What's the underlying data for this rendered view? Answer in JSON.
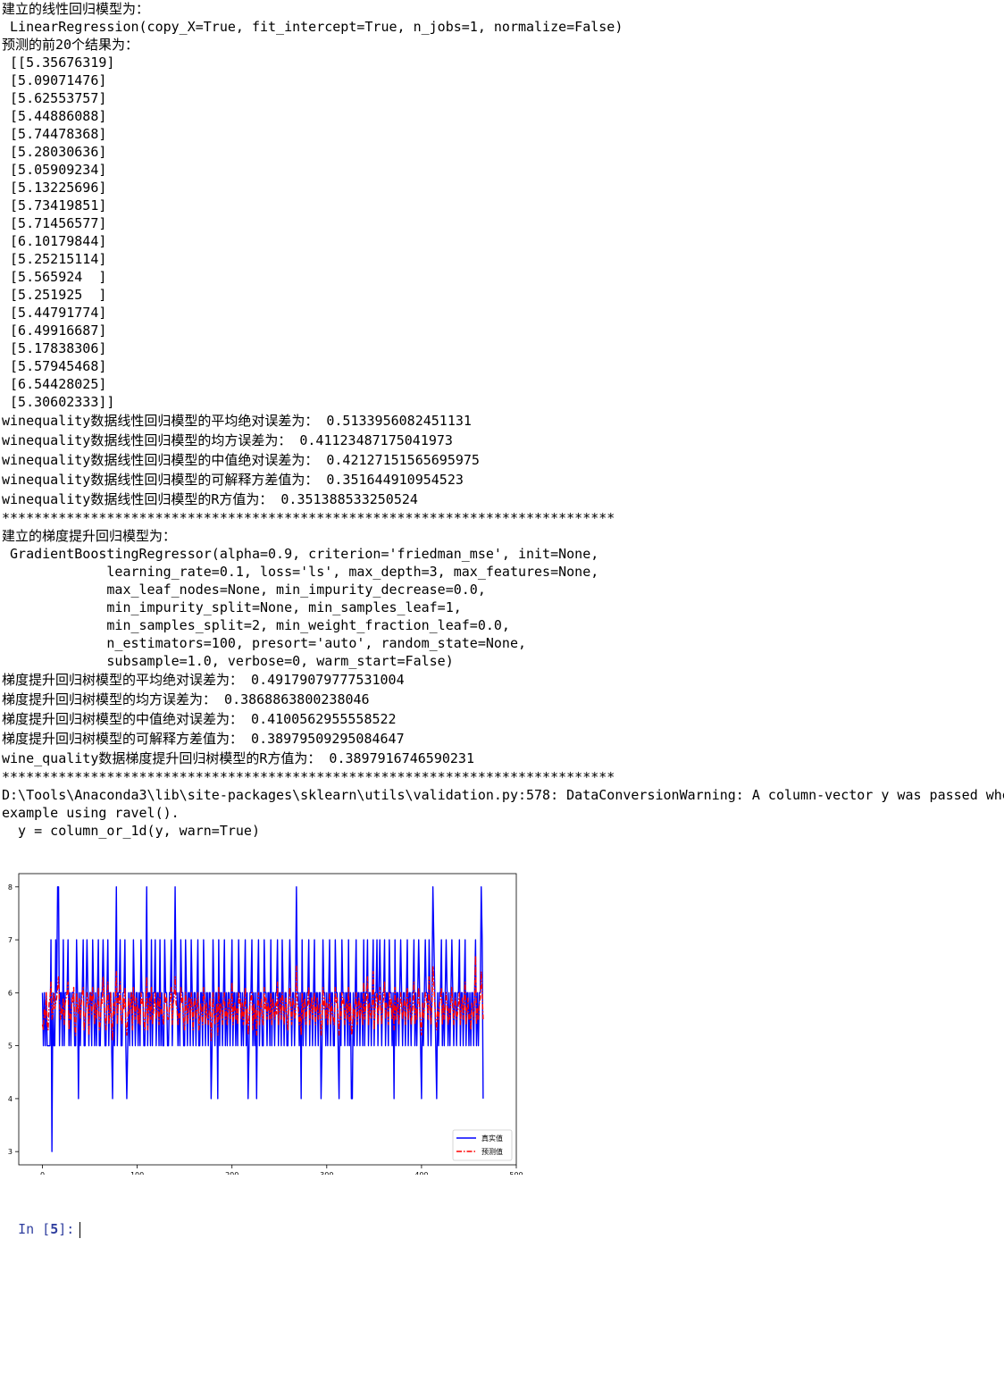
{
  "output": {
    "lines": [
      "建立的线性回归模型为：",
      " LinearRegression(copy_X=True, fit_intercept=True, n_jobs=1, normalize=False)",
      "预测的前20个结果为：",
      " [[5.35676319]",
      " [5.09071476]",
      " [5.62553757]",
      " [5.44886088]",
      " [5.74478368]",
      " [5.28030636]",
      " [5.05909234]",
      " [5.13225696]",
      " [5.73419851]",
      " [5.71456577]",
      " [6.10179844]",
      " [5.25215114]",
      " [5.565924  ]",
      " [5.251925  ]",
      " [5.44791774]",
      " [6.49916687]",
      " [5.17838306]",
      " [5.57945468]",
      " [6.54428025]",
      " [5.30602333]]"
    ],
    "lr_metrics": [
      "winequality数据线性回归模型的平均绝对误差为： 0.5133956082451131",
      "winequality数据线性回归模型的均方误差为： 0.41123487175041973",
      "winequality数据线性回归模型的中值绝对误差为： 0.42127151565695975",
      "winequality数据线性回归模型的可解释方差值为： 0.351644910954523",
      "winequality数据线性回归模型的R方值为： 0.351388533250524"
    ],
    "separator": "****************************************************************************",
    "gbr_lines": [
      "建立的梯度提升回归模型为：",
      " GradientBoostingRegressor(alpha=0.9, criterion='friedman_mse', init=None,",
      "             learning_rate=0.1, loss='ls', max_depth=3, max_features=None,",
      "             max_leaf_nodes=None, min_impurity_decrease=0.0,",
      "             min_impurity_split=None, min_samples_leaf=1,",
      "             min_samples_split=2, min_weight_fraction_leaf=0.0,",
      "             n_estimators=100, presort='auto', random_state=None,",
      "             subsample=1.0, verbose=0, warm_start=False)"
    ],
    "gbr_metrics": [
      "梯度提升回归树模型的平均绝对误差为： 0.49179079777531004",
      "梯度提升回归树模型的均方误差为： 0.3868863800238046",
      "梯度提升回归树模型的中值绝对误差为： 0.4100562955558522",
      "梯度提升回归树模型的可解释方差值为： 0.38979509295084647",
      "wine_quality数据梯度提升回归树模型的R方值为： 0.3897916746590231"
    ],
    "warning": [
      "D:\\Tools\\Anaconda3\\lib\\site-packages\\sklearn\\utils\\validation.py:578: DataConversionWarning: A column-vector y was passed whe",
      "example using ravel().",
      "  y = column_or_1d(y, warn=True)"
    ]
  },
  "prompt": {
    "label": "In ",
    "open": "[",
    "number": "5",
    "close": "]:"
  },
  "chart_data": {
    "type": "line",
    "title": "",
    "xlabel": "",
    "ylabel": "",
    "xlim": [
      -25,
      500
    ],
    "ylim": [
      2.75,
      8.25
    ],
    "xticks": [
      "0",
      "100",
      "200",
      "300",
      "400",
      "500"
    ],
    "yticks": [
      "3",
      "4",
      "5",
      "6",
      "7",
      "8"
    ],
    "grid": false,
    "legend_position": "lower-right",
    "colors": {
      "true": "#0000ff",
      "pred": "#ff0000"
    },
    "series": [
      {
        "name": "真实值",
        "style": "solid",
        "color": "#0000ff",
        "x_start": 0,
        "x_step": 1,
        "values": [
          6,
          5,
          6,
          5,
          6,
          5,
          5,
          5,
          5,
          7,
          3,
          6,
          5,
          5,
          7,
          6,
          8,
          8,
          5,
          6,
          6,
          5,
          7,
          5,
          6,
          6,
          6,
          7,
          5,
          6,
          5,
          6,
          6,
          6,
          5,
          5,
          7,
          6,
          4,
          6,
          5,
          6,
          6,
          7,
          5,
          5,
          6,
          7,
          6,
          5,
          6,
          6,
          5,
          7,
          6,
          5,
          6,
          5,
          6,
          7,
          5,
          5,
          6,
          6,
          7,
          6,
          5,
          5,
          6,
          7,
          5,
          6,
          6,
          5,
          4,
          6,
          5,
          6,
          8,
          5,
          6,
          6,
          7,
          5,
          5,
          6,
          6,
          7,
          5,
          4,
          5,
          6,
          5,
          6,
          6,
          5,
          7,
          6,
          5,
          6,
          6,
          5,
          6,
          5,
          7,
          6,
          6,
          5,
          5,
          6,
          8,
          5,
          6,
          6,
          5,
          7,
          5,
          6,
          6,
          7,
          5,
          6,
          6,
          5,
          7,
          5,
          6,
          5,
          5,
          7,
          6,
          6,
          5,
          5,
          6,
          6,
          7,
          5,
          6,
          6,
          8,
          6,
          6,
          5,
          6,
          5,
          7,
          6,
          6,
          5,
          5,
          7,
          6,
          5,
          6,
          6,
          5,
          7,
          6,
          5,
          6,
          6,
          5,
          6,
          7,
          5,
          5,
          6,
          6,
          5,
          7,
          6,
          5,
          6,
          6,
          5,
          6,
          6,
          4,
          5,
          7,
          6,
          5,
          6,
          6,
          4,
          7,
          5,
          6,
          6,
          5,
          6,
          7,
          5,
          6,
          5,
          6,
          6,
          5,
          6,
          7,
          5,
          6,
          6,
          5,
          6,
          5,
          7,
          6,
          6,
          5,
          6,
          5,
          6,
          7,
          5,
          6,
          4,
          5,
          6,
          6,
          7,
          5,
          6,
          5,
          6,
          4,
          6,
          7,
          5,
          6,
          6,
          5,
          5,
          7,
          6,
          6,
          5,
          6,
          6,
          5,
          7,
          5,
          6,
          6,
          5,
          6,
          6,
          7,
          5,
          6,
          6,
          5,
          7,
          6,
          5,
          6,
          6,
          5,
          5,
          6,
          7,
          6,
          5,
          6,
          6,
          5,
          6,
          8,
          6,
          6,
          5,
          6,
          4,
          7,
          5,
          6,
          6,
          5,
          6,
          6,
          7,
          5,
          6,
          6,
          5,
          6,
          7,
          5,
          6,
          6,
          5,
          6,
          6,
          4,
          5,
          7,
          6,
          6,
          5,
          6,
          5,
          6,
          7,
          5,
          6,
          6,
          5,
          5,
          7,
          6,
          6,
          5,
          4,
          6,
          5,
          7,
          6,
          6,
          5,
          6,
          6,
          5,
          7,
          5,
          6,
          4,
          4,
          6,
          5,
          6,
          7,
          5,
          6,
          6,
          5,
          6,
          6,
          5,
          7,
          5,
          6,
          6,
          7,
          5,
          6,
          6,
          5,
          6,
          7,
          5,
          6,
          6,
          7,
          5,
          6,
          7,
          6,
          5,
          6,
          6,
          7,
          5,
          6,
          6,
          5,
          7,
          6,
          6,
          5,
          6,
          4,
          7,
          5,
          6,
          6,
          5,
          6,
          7,
          6,
          5,
          6,
          6,
          5,
          6,
          7,
          5,
          6,
          6,
          5,
          6,
          6,
          7,
          5,
          6,
          5,
          6,
          7,
          6,
          5,
          4,
          6,
          5,
          6,
          7,
          6,
          6,
          5,
          7,
          6,
          5,
          6,
          8,
          7,
          6,
          5,
          4,
          6,
          5,
          6,
          6,
          7,
          5,
          6,
          5,
          6,
          7,
          6,
          5,
          6,
          5,
          6,
          7,
          6,
          5,
          6,
          6,
          5,
          6,
          6,
          7,
          5,
          6,
          6,
          5,
          6,
          7,
          5,
          6,
          6,
          5,
          6,
          5,
          6,
          6,
          5,
          6,
          7,
          5,
          6,
          5,
          6,
          6,
          8,
          7,
          4
        ]
      },
      {
        "name": "预测值",
        "style": "dashdot",
        "color": "#ff0000",
        "x_start": 0,
        "x_step": 1,
        "values": [
          5.4,
          5.3,
          5.7,
          5.5,
          6.0,
          5.4,
          5.3,
          5.8,
          5.9,
          6.2,
          5.5,
          5.6,
          6.0,
          5.7,
          5.8,
          5.9,
          6.1,
          6.3,
          5.8,
          5.5,
          5.7,
          5.6,
          5.9,
          5.4,
          5.8,
          5.9,
          6.0,
          6.2,
          5.3,
          5.6,
          5.5,
          5.9,
          5.8,
          6.1,
          5.4,
          5.2,
          6.0,
          5.7,
          5.6,
          5.9,
          5.5,
          5.8,
          6.0,
          6.1,
          5.3,
          5.5,
          5.7,
          6.0,
          5.8,
          5.2,
          5.9,
          6.0,
          5.6,
          6.1,
          5.9,
          5.4,
          5.8,
          5.5,
          5.7,
          6.1,
          5.3,
          5.4,
          5.9,
          5.8,
          6.3,
          5.9,
          5.5,
          5.3,
          5.8,
          6.2,
          5.4,
          5.6,
          6.0,
          5.4,
          5.1,
          5.8,
          5.6,
          5.9,
          6.4,
          5.4,
          5.9,
          5.8,
          6.2,
          5.5,
          5.4,
          5.9,
          5.7,
          6.1,
          5.4,
          5.2,
          5.5,
          5.9,
          5.6,
          5.8,
          6.0,
          5.3,
          6.1,
          5.8,
          5.5,
          5.9,
          5.8,
          5.4,
          5.7,
          5.4,
          6.0,
          5.8,
          5.9,
          5.5,
          5.3,
          5.7,
          6.3,
          5.3,
          5.7,
          5.9,
          5.5,
          6.1,
          5.4,
          5.6,
          5.8,
          6.0,
          5.5,
          5.7,
          5.9,
          5.4,
          6.0,
          5.6,
          5.7,
          5.5,
          5.4,
          6.0,
          5.8,
          5.9,
          5.5,
          5.5,
          5.7,
          5.9,
          6.1,
          5.4,
          5.8,
          5.9,
          6.3,
          5.8,
          5.7,
          5.4,
          5.6,
          5.5,
          6.1,
          5.8,
          5.9,
          5.4,
          5.3,
          6.0,
          5.7,
          5.4,
          5.8,
          5.9,
          5.5,
          6.0,
          5.7,
          5.3,
          5.8,
          5.9,
          5.5,
          5.7,
          6.0,
          5.3,
          5.5,
          5.8,
          5.6,
          5.4,
          6.1,
          5.9,
          5.4,
          5.8,
          5.6,
          5.4,
          5.7,
          5.9,
          5.1,
          5.5,
          6.0,
          5.7,
          5.4,
          5.6,
          5.8,
          5.2,
          6.1,
          5.5,
          5.8,
          5.7,
          5.4,
          5.9,
          6.0,
          5.5,
          5.7,
          5.4,
          5.8,
          5.9,
          5.5,
          5.6,
          6.2,
          5.4,
          5.7,
          5.8,
          5.5,
          5.7,
          5.4,
          6.0,
          5.8,
          5.9,
          5.5,
          5.8,
          5.4,
          5.7,
          6.1,
          5.4,
          5.7,
          5.2,
          5.5,
          5.8,
          5.9,
          6.0,
          5.3,
          5.8,
          5.5,
          5.7,
          5.2,
          5.8,
          6.0,
          5.4,
          5.7,
          5.9,
          5.5,
          5.4,
          6.1,
          5.7,
          5.9,
          5.5,
          5.8,
          5.7,
          5.5,
          6.0,
          5.4,
          5.9,
          5.7,
          5.5,
          5.8,
          5.6,
          6.2,
          5.4,
          5.7,
          5.9,
          5.5,
          6.0,
          5.8,
          5.4,
          5.7,
          5.9,
          5.5,
          5.3,
          5.8,
          6.1,
          5.7,
          5.4,
          5.9,
          5.8,
          5.5,
          5.6,
          6.5,
          5.8,
          5.7,
          5.4,
          5.6,
          5.2,
          6.0,
          5.5,
          5.8,
          5.9,
          5.4,
          5.7,
          5.8,
          6.1,
          5.4,
          5.7,
          5.9,
          5.5,
          5.8,
          6.0,
          5.4,
          5.7,
          5.9,
          5.5,
          5.6,
          5.8,
          5.2,
          5.4,
          6.1,
          5.7,
          5.9,
          5.5,
          5.8,
          5.4,
          5.7,
          6.0,
          5.4,
          5.8,
          5.6,
          5.5,
          5.4,
          6.1,
          5.8,
          5.9,
          5.5,
          5.2,
          5.7,
          5.5,
          6.0,
          5.8,
          5.9,
          5.4,
          5.7,
          5.8,
          5.5,
          6.1,
          5.4,
          5.8,
          5.2,
          5.3,
          5.7,
          5.5,
          5.8,
          6.0,
          5.4,
          5.7,
          5.9,
          5.5,
          5.8,
          5.7,
          5.4,
          6.2,
          5.5,
          5.7,
          5.9,
          6.3,
          5.4,
          5.8,
          5.6,
          5.5,
          5.8,
          6.4,
          5.3,
          5.7,
          5.9,
          6.0,
          5.4,
          5.8,
          6.1,
          5.7,
          5.4,
          5.8,
          5.9,
          6.2,
          5.5,
          5.8,
          5.7,
          5.4,
          6.0,
          5.7,
          5.9,
          5.5,
          5.8,
          5.3,
          6.1,
          5.5,
          5.7,
          5.9,
          5.4,
          5.6,
          6.0,
          5.8,
          5.5,
          5.7,
          5.9,
          5.4,
          5.8,
          6.1,
          5.5,
          5.7,
          5.9,
          5.4,
          5.6,
          5.8,
          6.2,
          5.4,
          5.7,
          5.5,
          5.8,
          6.1,
          5.7,
          5.4,
          5.2,
          5.8,
          5.5,
          5.7,
          6.0,
          5.9,
          5.8,
          5.5,
          6.3,
          5.7,
          5.4,
          5.8,
          6.5,
          6.2,
          5.8,
          5.5,
          5.3,
          5.7,
          5.5,
          5.8,
          5.9,
          6.1,
          5.4,
          5.8,
          5.5,
          5.7,
          6.0,
          5.8,
          5.4,
          5.7,
          5.5,
          5.8,
          6.1,
          5.7,
          5.4,
          5.8,
          5.9,
          5.5,
          5.6,
          5.8,
          6.0,
          5.4,
          5.7,
          5.9,
          5.5,
          5.8,
          6.2,
          5.4,
          5.7,
          5.9,
          5.5,
          5.6,
          5.3,
          5.8,
          5.7,
          5.5,
          5.9,
          6.7,
          5.4,
          5.7,
          5.5,
          5.8,
          5.9,
          6.4,
          6.0,
          5.5
        ]
      }
    ]
  }
}
